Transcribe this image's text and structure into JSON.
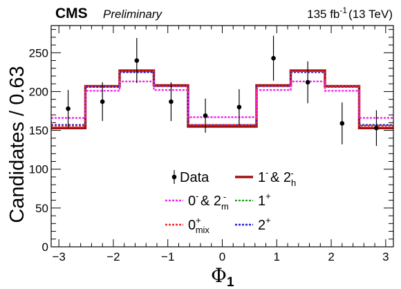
{
  "header": {
    "experiment": "CMS",
    "status": "Preliminary",
    "lumi": "135 fb",
    "lumi_exp": "-1",
    "energy": "(13 TeV)"
  },
  "chart_data": {
    "type": "line",
    "xlabel": "Φ",
    "xlabel_sub": "1",
    "ylabel": "Candidates / 0.63",
    "xlim": [
      -3.1416,
      3.1416
    ],
    "ylim": [
      0,
      285
    ],
    "xticks": [
      -3,
      -2,
      -1,
      0,
      1,
      2,
      3
    ],
    "yticks": [
      0,
      50,
      100,
      150,
      200,
      250
    ],
    "bin_edges": [
      -3.1416,
      -2.5133,
      -1.885,
      -1.2566,
      -0.6283,
      0,
      0.6283,
      1.2566,
      1.885,
      2.5133,
      3.1416
    ],
    "data": {
      "name": "Data",
      "x": [
        -2.83,
        -2.2,
        -1.57,
        -0.94,
        -0.31,
        0.31,
        0.94,
        1.57,
        2.2,
        2.83
      ],
      "y": [
        178,
        187,
        240,
        187,
        169,
        180,
        243,
        212,
        159,
        153
      ],
      "err": [
        24,
        25,
        29,
        25,
        22,
        23,
        29,
        27,
        27,
        23
      ]
    },
    "series": [
      {
        "name": "1⁻ & 2ₕ⁻",
        "legend_main": "1",
        "legend_sup": "-",
        "legend_mid": " & 2",
        "legend_sub": "h",
        "legend_sup2": "-",
        "color": "#a01010",
        "dashed": false,
        "width": 3.5,
        "values": [
          153,
          207,
          227,
          208,
          155,
          155,
          208,
          227,
          207,
          153
        ]
      },
      {
        "name": "1⁺",
        "legend_main": "1",
        "legend_sup": "+",
        "color": "#17a317",
        "dashed": true,
        "width": 2.2,
        "values": [
          156,
          207,
          226,
          207,
          157,
          157,
          207,
          226,
          207,
          156
        ]
      },
      {
        "name": "2⁺",
        "legend_main": "2",
        "legend_sup": "+",
        "color": "#1a1ad8",
        "dashed": true,
        "width": 2.4,
        "values": [
          157,
          206,
          225,
          207,
          157,
          157,
          207,
          225,
          206,
          157
        ]
      },
      {
        "name": "0ₘᵢₓ⁺",
        "legend_main": "0",
        "legend_sup": "+",
        "legend_sub": "mix",
        "color": "#ee2222",
        "dashed": true,
        "width": 2.4,
        "values": [
          156,
          207,
          226,
          207,
          157,
          157,
          207,
          226,
          207,
          156
        ]
      },
      {
        "name": "0⁻ & 2ₘ⁻",
        "legend_main": "0",
        "legend_sup": "-",
        "legend_mid": " & 2",
        "legend_sub": "m",
        "legend_sup2": "-",
        "color": "#ee22ee",
        "dashed": true,
        "width": 2.4,
        "values": [
          166,
          201,
          213,
          202,
          167,
          167,
          202,
          213,
          201,
          166
        ]
      }
    ],
    "legend": {
      "placement": "center-bottom",
      "order": [
        "Data",
        "1⁻ & 2ₕ⁻",
        "0⁻ & 2ₘ⁻",
        "1⁺",
        "0ₘᵢₓ⁺",
        "2⁺"
      ]
    }
  }
}
